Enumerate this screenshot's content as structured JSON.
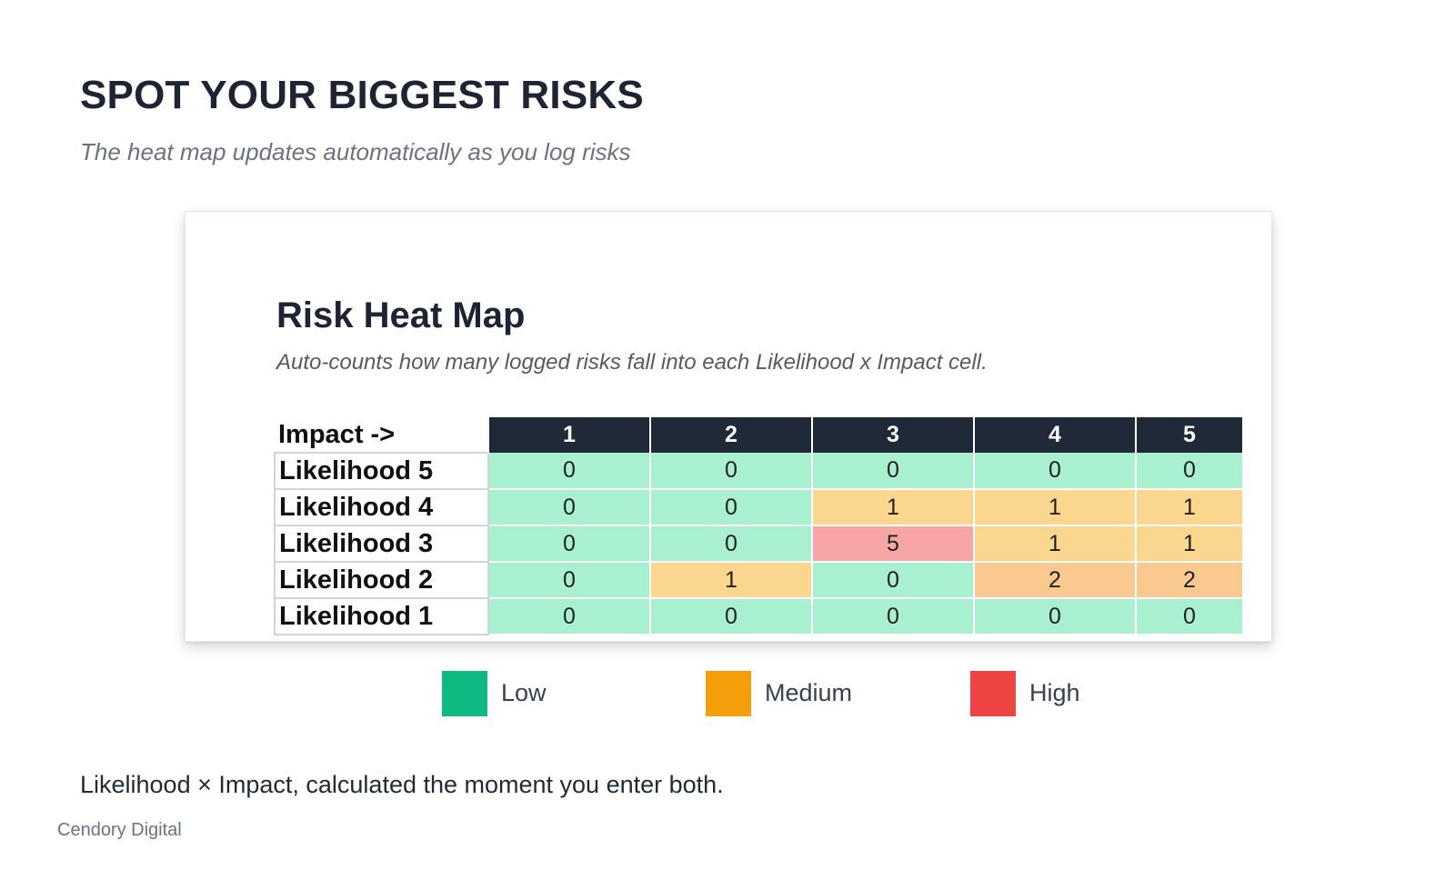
{
  "header": {
    "title": "SPOT YOUR BIGGEST RISKS",
    "subtitle": "The heat map updates automatically as you log risks"
  },
  "card": {
    "title": "Risk Heat Map",
    "subtitle": "Auto-counts how many logged risks fall into each Likelihood x Impact cell."
  },
  "heatmap": {
    "axis_label": "Impact ->",
    "impact_levels": [
      "1",
      "2",
      "3",
      "4",
      "5"
    ],
    "rows": [
      {
        "label": "Likelihood 5",
        "values": [
          "0",
          "0",
          "0",
          "0",
          "0"
        ],
        "fills": [
          "#a8f0cf",
          "#a8f0cf",
          "#a8f0cf",
          "#a8f0cf",
          "#a8f0cf"
        ]
      },
      {
        "label": "Likelihood 4",
        "values": [
          "0",
          "0",
          "1",
          "1",
          "1"
        ],
        "fills": [
          "#a8f0cf",
          "#a8f0cf",
          "#fbd68f",
          "#fbd68f",
          "#fbd68f"
        ]
      },
      {
        "label": "Likelihood 3",
        "values": [
          "0",
          "0",
          "5",
          "1",
          "1"
        ],
        "fills": [
          "#a8f0cf",
          "#a8f0cf",
          "#f8a5a5",
          "#fbd68f",
          "#fbd68f"
        ]
      },
      {
        "label": "Likelihood 2",
        "values": [
          "0",
          "1",
          "0",
          "2",
          "2"
        ],
        "fills": [
          "#a8f0cf",
          "#fbd68f",
          "#a8f0cf",
          "#f9c990",
          "#f9c990"
        ]
      },
      {
        "label": "Likelihood 1",
        "values": [
          "0",
          "0",
          "0",
          "0",
          "0"
        ],
        "fills": [
          "#a8f0cf",
          "#a8f0cf",
          "#a8f0cf",
          "#a8f0cf",
          "#a8f0cf"
        ]
      }
    ]
  },
  "legend": [
    {
      "label": "Low",
      "color": "#10b981"
    },
    {
      "label": "Medium",
      "color": "#f59e0b"
    },
    {
      "label": "High",
      "color": "#ef4444"
    }
  ],
  "footer": {
    "note": "Likelihood × Impact, calculated the moment you enter both.",
    "brand": "Cendory Digital"
  }
}
